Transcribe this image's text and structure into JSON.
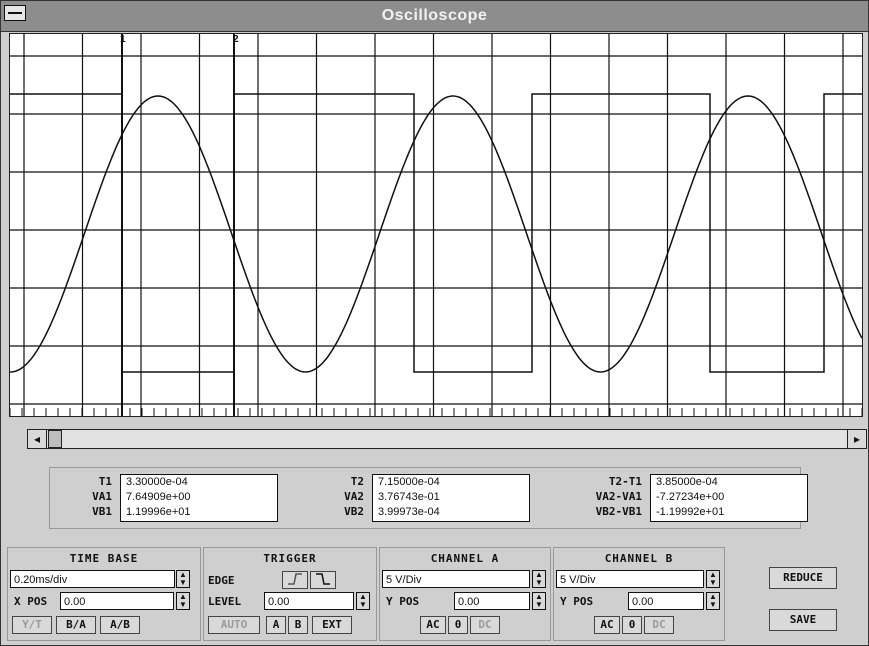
{
  "window": {
    "title": "Oscilloscope"
  },
  "display": {
    "marker1": "1",
    "marker2": "2"
  },
  "measurements": {
    "t1_label": "T1",
    "t1": "3.30000e-04",
    "va1_label": "VA1",
    "va1": "7.64909e+00",
    "vb1_label": "VB1",
    "vb1": "1.19996e+01",
    "t2_label": "T2",
    "t2": "7.15000e-04",
    "va2_label": "VA2",
    "va2": "3.76743e-01",
    "vb2_label": "VB2",
    "vb2": "3.99973e-04",
    "dt_label": "T2-T1",
    "dt": "3.85000e-04",
    "dva_label": "VA2-VA1",
    "dva": "-7.27234e+00",
    "dvb_label": "VB2-VB1",
    "dvb": "-1.19992e+01"
  },
  "time_base": {
    "label": "TIME BASE",
    "value": "0.20ms/div",
    "xpos_label": "X POS",
    "xpos": "0.00",
    "btn_yt": "Y/T",
    "btn_ba": "B/A",
    "btn_ab": "A/B"
  },
  "trigger": {
    "label": "TRIGGER",
    "edge_label": "EDGE",
    "level_label": "LEVEL",
    "level": "0.00",
    "btn_auto": "AUTO",
    "btn_a": "A",
    "btn_b": "B",
    "btn_ext": "EXT"
  },
  "channel_a": {
    "label": "CHANNEL A",
    "value": "5 V/Div",
    "ypos_label": "Y POS",
    "ypos": "0.00",
    "btn_ac": "AC",
    "btn_0": "0",
    "btn_dc": "DC"
  },
  "channel_b": {
    "label": "CHANNEL B",
    "value": "5 V/Div",
    "ypos_label": "Y POS",
    "ypos": "0.00",
    "btn_ac": "AC",
    "btn_0": "0",
    "btn_dc": "DC"
  },
  "actions": {
    "reduce": "REDUCE",
    "save": "SAVE"
  }
}
